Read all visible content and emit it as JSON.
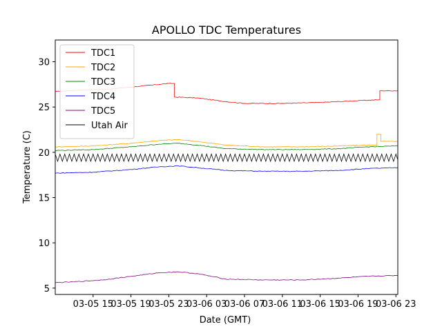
{
  "chart_data": {
    "type": "line",
    "title": "APOLLO TDC Temperatures",
    "xlabel": "Date (GMT)",
    "ylabel": "Temperature (C)",
    "xlim": [
      11.0,
      47.2
    ],
    "ylim": [
      4.3,
      32.4
    ],
    "grid": false,
    "legend_position": "top-left",
    "x_ticks": [
      {
        "x": 15,
        "label": "03-05 15"
      },
      {
        "x": 19,
        "label": "03-05 19"
      },
      {
        "x": 23,
        "label": "03-05 23"
      },
      {
        "x": 27,
        "label": "03-06 03"
      },
      {
        "x": 31,
        "label": "03-06 07"
      },
      {
        "x": 35,
        "label": "03-06 11"
      },
      {
        "x": 39,
        "label": "03-06 15"
      },
      {
        "x": 43,
        "label": "03-06 19"
      },
      {
        "x": 47,
        "label": "03-06 23"
      }
    ],
    "y_ticks": [
      {
        "y": 5,
        "label": "5"
      },
      {
        "y": 10,
        "label": "10"
      },
      {
        "y": 15,
        "label": "15"
      },
      {
        "y": 20,
        "label": "20"
      },
      {
        "y": 25,
        "label": "25"
      },
      {
        "y": 30,
        "label": "30"
      }
    ],
    "series": [
      {
        "name": "TDC1",
        "color": "#ff0000",
        "x": [
          11.0,
          14.0,
          17.0,
          20.0,
          23.0,
          23.6,
          23.6,
          26.0,
          29.0,
          31.0,
          35.0,
          39.0,
          43.0,
          45.3,
          45.3,
          47.2
        ],
        "y": [
          26.7,
          26.9,
          27.0,
          27.3,
          27.6,
          27.6,
          26.1,
          26.0,
          25.6,
          25.4,
          25.4,
          25.5,
          25.7,
          25.8,
          26.8,
          26.8
        ]
      },
      {
        "name": "TDC2",
        "color": "#ffa500",
        "x": [
          11.0,
          15.0,
          19.0,
          22.0,
          24.0,
          26.0,
          29.0,
          33.0,
          37.0,
          41.0,
          44.5,
          45.0,
          45.0,
          45.4,
          45.4,
          47.2
        ],
        "y": [
          20.6,
          20.7,
          21.0,
          21.3,
          21.4,
          21.2,
          20.8,
          20.6,
          20.6,
          20.7,
          20.8,
          20.8,
          22.0,
          22.0,
          21.2,
          21.2
        ]
      },
      {
        "name": "TDC3",
        "color": "#008000",
        "x": [
          11.0,
          15.0,
          19.0,
          22.0,
          24.0,
          26.0,
          29.0,
          33.0,
          37.0,
          41.0,
          44.0,
          47.2
        ],
        "y": [
          20.2,
          20.3,
          20.6,
          20.9,
          21.0,
          20.8,
          20.4,
          20.3,
          20.3,
          20.4,
          20.6,
          20.7
        ]
      },
      {
        "name": "TDC4",
        "color": "#0000ff",
        "x": [
          11.0,
          15.0,
          19.0,
          22.0,
          24.0,
          26.0,
          29.0,
          33.0,
          37.0,
          41.0,
          44.0,
          47.2
        ],
        "y": [
          17.7,
          17.8,
          18.1,
          18.4,
          18.5,
          18.3,
          18.0,
          17.9,
          17.9,
          18.0,
          18.2,
          18.3
        ]
      },
      {
        "name": "TDC5",
        "color": "#800080",
        "x": [
          11.0,
          13.0,
          16.0,
          19.0,
          22.0,
          24.0,
          26.0,
          29.0,
          33.0,
          37.0,
          41.0,
          44.0,
          47.2
        ],
        "y": [
          5.6,
          5.7,
          5.9,
          6.3,
          6.7,
          6.8,
          6.6,
          6.0,
          5.9,
          5.9,
          6.1,
          6.3,
          6.4
        ]
      },
      {
        "name": "Utah Air",
        "color": "#000000",
        "oscillation": {
          "center": 19.4,
          "amplitude": 0.4,
          "period_hours": 0.5
        },
        "x": [
          11.0,
          47.2
        ],
        "y": [
          19.4,
          19.4
        ]
      }
    ]
  }
}
